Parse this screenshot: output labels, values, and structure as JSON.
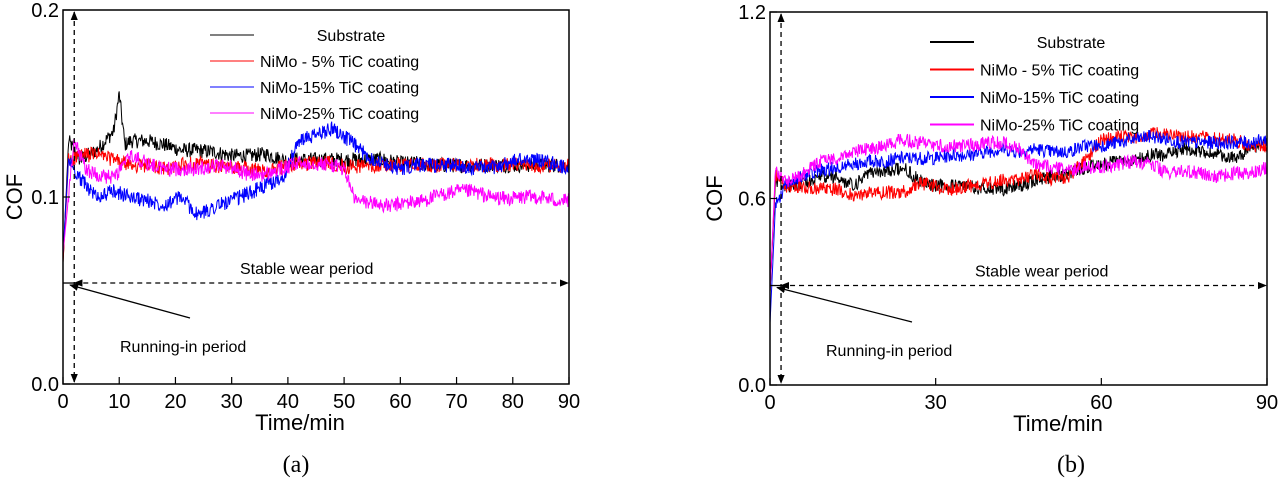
{
  "chart_data": [
    {
      "type": "line",
      "caption": "(a)",
      "xlabel": "Time/min",
      "ylabel": "COF",
      "xlim": [
        0,
        90
      ],
      "ylim": [
        0,
        0.2
      ],
      "xticks": [
        0,
        10,
        20,
        30,
        40,
        50,
        60,
        70,
        80,
        90
      ],
      "yticks": [
        "0.0",
        "0.1",
        "0.2"
      ],
      "grid": false,
      "legend_position": "top-center",
      "annotations": {
        "stable": "Stable wear period",
        "stable_cof": 0.054,
        "running_in": "Running-in period",
        "running_in_end_time": 2
      },
      "series": [
        {
          "name": "Substrate",
          "color": "#000000",
          "x": [
            0,
            1,
            3,
            6,
            9,
            10,
            11,
            12,
            15,
            18,
            21,
            24,
            27,
            30,
            33,
            36,
            39,
            42,
            45,
            48,
            51,
            54,
            57,
            60,
            63,
            66,
            69,
            72,
            75,
            78,
            81,
            84,
            87,
            90
          ],
          "y": [
            0.065,
            0.13,
            0.12,
            0.125,
            0.135,
            0.155,
            0.128,
            0.13,
            0.13,
            0.128,
            0.125,
            0.125,
            0.124,
            0.122,
            0.122,
            0.123,
            0.12,
            0.12,
            0.12,
            0.12,
            0.12,
            0.12,
            0.12,
            0.118,
            0.118,
            0.117,
            0.117,
            0.117,
            0.117,
            0.117,
            0.117,
            0.117,
            0.117,
            0.117
          ]
        },
        {
          "name": "NiMo - 5% TiC coating",
          "color": "#ff0000",
          "x": [
            0,
            1,
            3,
            6,
            9,
            12,
            15,
            18,
            21,
            24,
            27,
            30,
            33,
            36,
            39,
            42,
            45,
            48,
            51,
            54,
            57,
            60,
            63,
            66,
            69,
            72,
            75,
            78,
            81,
            84,
            87,
            90
          ],
          "y": [
            0.065,
            0.12,
            0.122,
            0.123,
            0.12,
            0.117,
            0.117,
            0.115,
            0.117,
            0.118,
            0.116,
            0.116,
            0.115,
            0.114,
            0.116,
            0.118,
            0.118,
            0.118,
            0.116,
            0.117,
            0.117,
            0.117,
            0.117,
            0.117,
            0.117,
            0.117,
            0.117,
            0.117,
            0.117,
            0.117,
            0.117,
            0.117
          ]
        },
        {
          "name": "NiMo-15% TiC coating",
          "color": "#0000ff",
          "x": [
            0,
            1,
            3,
            6,
            9,
            12,
            15,
            18,
            21,
            24,
            27,
            30,
            33,
            36,
            39,
            42,
            45,
            48,
            51,
            54,
            57,
            60,
            63,
            66,
            69,
            72,
            75,
            78,
            81,
            84,
            87,
            90
          ],
          "y": [
            0.07,
            0.12,
            0.11,
            0.1,
            0.103,
            0.1,
            0.098,
            0.096,
            0.1,
            0.09,
            0.095,
            0.098,
            0.102,
            0.106,
            0.11,
            0.13,
            0.133,
            0.137,
            0.13,
            0.122,
            0.118,
            0.115,
            0.117,
            0.117,
            0.117,
            0.116,
            0.115,
            0.117,
            0.12,
            0.12,
            0.118,
            0.115
          ]
        },
        {
          "name": "NiMo-25% TiC coating",
          "color": "#ff00ff",
          "x": [
            0,
            2,
            4,
            6,
            9,
            12,
            15,
            18,
            21,
            24,
            27,
            30,
            33,
            36,
            39,
            42,
            45,
            48,
            50,
            52,
            55,
            58,
            61,
            64,
            67,
            70,
            73,
            76,
            79,
            82,
            85,
            88,
            90
          ],
          "y": [
            0.07,
            0.13,
            0.115,
            0.112,
            0.11,
            0.122,
            0.118,
            0.115,
            0.115,
            0.115,
            0.117,
            0.116,
            0.112,
            0.112,
            0.115,
            0.118,
            0.118,
            0.117,
            0.115,
            0.098,
            0.097,
            0.095,
            0.097,
            0.098,
            0.101,
            0.103,
            0.103,
            0.1,
            0.099,
            0.1,
            0.1,
            0.098,
            0.098
          ]
        }
      ]
    },
    {
      "type": "line",
      "caption": "(b)",
      "xlabel": "Time/min",
      "ylabel": "COF",
      "xlim": [
        0,
        90
      ],
      "ylim": [
        0,
        1.2
      ],
      "xticks": [
        0,
        30,
        60,
        90
      ],
      "yticks": [
        "0.0",
        "0.6",
        "1.2"
      ],
      "grid": false,
      "legend_position": "top-center",
      "annotations": {
        "stable": "Stable wear period",
        "stable_cof": 0.32,
        "running_in": "Running-in period",
        "running_in_end_time": 2
      },
      "series": [
        {
          "name": "Substrate",
          "color": "#000000",
          "x": [
            0,
            1,
            3,
            6,
            9,
            12,
            15,
            18,
            21,
            24,
            27,
            30,
            33,
            36,
            39,
            42,
            45,
            48,
            51,
            54,
            57,
            60,
            63,
            66,
            69,
            72,
            75,
            78,
            81,
            84,
            87,
            90
          ],
          "y": [
            0.3,
            0.66,
            0.64,
            0.65,
            0.67,
            0.67,
            0.64,
            0.68,
            0.69,
            0.7,
            0.66,
            0.64,
            0.64,
            0.64,
            0.63,
            0.63,
            0.64,
            0.66,
            0.67,
            0.68,
            0.7,
            0.71,
            0.72,
            0.72,
            0.74,
            0.74,
            0.76,
            0.75,
            0.74,
            0.73,
            0.76,
            0.78
          ]
        },
        {
          "name": "NiMo - 5% TiC coating",
          "color": "#ff0000",
          "x": [
            0,
            1,
            3,
            6,
            9,
            12,
            15,
            18,
            21,
            24,
            27,
            30,
            33,
            36,
            39,
            42,
            45,
            48,
            51,
            54,
            57,
            60,
            63,
            66,
            69,
            72,
            75,
            78,
            81,
            84,
            87,
            90
          ],
          "y": [
            0.3,
            0.68,
            0.64,
            0.64,
            0.63,
            0.63,
            0.61,
            0.62,
            0.62,
            0.62,
            0.65,
            0.64,
            0.63,
            0.64,
            0.65,
            0.66,
            0.66,
            0.68,
            0.66,
            0.67,
            0.72,
            0.79,
            0.8,
            0.79,
            0.81,
            0.81,
            0.8,
            0.8,
            0.79,
            0.79,
            0.77,
            0.77
          ]
        },
        {
          "name": "NiMo-15% TiC coating",
          "color": "#0000ff",
          "x": [
            0,
            1,
            3,
            6,
            9,
            12,
            15,
            18,
            21,
            24,
            27,
            30,
            33,
            36,
            39,
            42,
            45,
            48,
            51,
            54,
            57,
            60,
            63,
            66,
            69,
            72,
            75,
            78,
            81,
            84,
            87,
            90
          ],
          "y": [
            0.2,
            0.58,
            0.65,
            0.67,
            0.69,
            0.7,
            0.71,
            0.72,
            0.72,
            0.73,
            0.73,
            0.73,
            0.74,
            0.74,
            0.75,
            0.76,
            0.75,
            0.76,
            0.75,
            0.75,
            0.77,
            0.77,
            0.78,
            0.79,
            0.8,
            0.79,
            0.78,
            0.78,
            0.78,
            0.78,
            0.78,
            0.79
          ]
        },
        {
          "name": "NiMo-25% TiC coating",
          "color": "#ff00ff",
          "x": [
            0,
            1,
            3,
            6,
            9,
            12,
            15,
            18,
            21,
            24,
            27,
            30,
            33,
            36,
            39,
            42,
            45,
            48,
            51,
            54,
            57,
            60,
            63,
            66,
            69,
            72,
            75,
            78,
            81,
            84,
            87,
            90
          ],
          "y": [
            0.3,
            0.7,
            0.65,
            0.68,
            0.72,
            0.73,
            0.75,
            0.76,
            0.77,
            0.79,
            0.78,
            0.77,
            0.77,
            0.77,
            0.78,
            0.78,
            0.76,
            0.71,
            0.7,
            0.69,
            0.7,
            0.7,
            0.71,
            0.72,
            0.71,
            0.68,
            0.69,
            0.68,
            0.67,
            0.68,
            0.68,
            0.7
          ]
        }
      ]
    }
  ]
}
